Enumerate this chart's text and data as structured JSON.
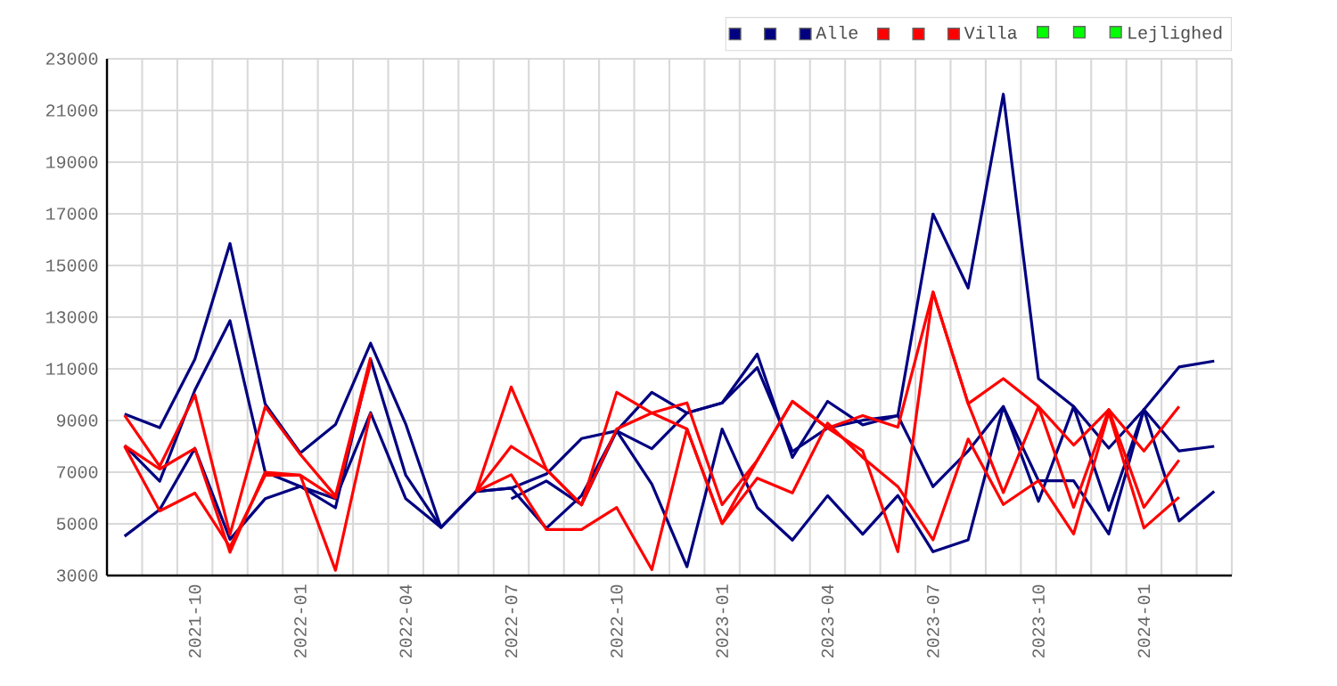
{
  "chart_data": {
    "type": "line",
    "x": [
      "2021-08",
      "2021-09",
      "2021-10",
      "2021-11",
      "2021-12",
      "2022-01",
      "2022-02",
      "2022-03",
      "2022-04",
      "2022-05",
      "2022-06",
      "2022-07",
      "2022-08",
      "2022-09",
      "2022-10",
      "2022-11",
      "2022-12",
      "2023-01",
      "2023-02",
      "2023-03",
      "2023-04",
      "2023-05",
      "2023-06",
      "2023-07",
      "2023-08",
      "2023-09",
      "2023-10",
      "2023-11",
      "2023-12",
      "2024-01",
      "2024-02",
      "2024-03"
    ],
    "series": [
      {
        "color": "#000080",
        "values": [
          9250,
          8720,
          11370,
          15850,
          9640,
          7740,
          8840,
          11990,
          8860,
          4860,
          6250,
          6380,
          6930,
          8300,
          8600,
          10090,
          9290,
          9680,
          11570,
          7570,
          9740,
          8830,
          9190,
          16990,
          14130,
          21630,
          10620,
          9540,
          7930,
          9420,
          11070,
          11300
        ]
      },
      {
        "color": "#000080",
        "values": [
          8030,
          6650,
          10170,
          12860,
          7000,
          6450,
          5620,
          11370,
          6880,
          4860,
          null,
          5970,
          6660,
          5740,
          8600,
          7910,
          9290,
          9680,
          11050,
          7800,
          8710,
          9010,
          9190,
          6440,
          7820,
          9540,
          6670,
          6670,
          4610,
          9420,
          7820,
          8000
        ]
      },
      {
        "name": "Alle",
        "color": "#000080",
        "values": [
          4520,
          5550,
          7920,
          4400,
          5970,
          6450,
          5970,
          9300,
          5970,
          4860,
          6250,
          6380,
          4830,
          6090,
          8600,
          6540,
          3340,
          8670,
          5630,
          4370,
          6090,
          4600,
          6100,
          3920,
          4380,
          9540,
          5870,
          9540,
          5520,
          9420,
          5110,
          6260
        ]
      },
      {
        "color": "#ff0000",
        "values": [
          9200,
          7230,
          9990,
          4590,
          9530,
          7690,
          6080,
          11440,
          null,
          null,
          6250,
          10300,
          7110,
          5740,
          10090,
          9290,
          9680,
          5740,
          7460,
          9740,
          8710,
          9190,
          8740,
          13970,
          9650,
          10620,
          9540,
          8050,
          9420,
          7820,
          9540,
          null
        ]
      },
      {
        "color": "#ff0000",
        "values": [
          8030,
          7120,
          7920,
          3900,
          7000,
          6880,
          6000,
          11200,
          null,
          null,
          6250,
          6900,
          4780,
          4780,
          5630,
          3230,
          8670,
          5010,
          6770,
          6200,
          8900,
          7570,
          6440,
          4380,
          8280,
          5750,
          6670,
          4610,
          9310,
          4840,
          6030,
          null
        ]
      },
      {
        "name": "Villa",
        "color": "#ff0000",
        "values": [
          8000,
          5500,
          6190,
          4100,
          6880,
          6880,
          3200,
          9300,
          null,
          null,
          6250,
          8000,
          7110,
          5740,
          8670,
          9290,
          8670,
          5010,
          7460,
          9740,
          8710,
          7820,
          3920,
          13970,
          9650,
          6210,
          9540,
          5640,
          9420,
          5640,
          7470,
          null
        ]
      },
      {
        "color": "#00ff00",
        "values": [
          null,
          null,
          null,
          null,
          null,
          null,
          null,
          null,
          null,
          null,
          null,
          null,
          null,
          null,
          null,
          null,
          null,
          null,
          null,
          null,
          null,
          null,
          null,
          null,
          null,
          null,
          null,
          null,
          null,
          null,
          null,
          null
        ]
      },
      {
        "color": "#00ff00",
        "values": [
          null,
          null,
          null,
          null,
          null,
          null,
          null,
          null,
          null,
          null,
          null,
          null,
          null,
          null,
          null,
          null,
          null,
          null,
          null,
          null,
          null,
          null,
          null,
          null,
          null,
          null,
          null,
          null,
          null,
          null,
          null,
          null
        ]
      },
      {
        "name": "Lejlighed",
        "color": "#00ff00",
        "values": [
          null,
          null,
          null,
          null,
          null,
          null,
          null,
          null,
          null,
          null,
          null,
          null,
          null,
          null,
          null,
          null,
          null,
          null,
          null,
          null,
          null,
          null,
          null,
          null,
          null,
          null,
          null,
          null,
          null,
          null,
          null,
          null
        ]
      }
    ],
    "xlim": [
      "2021-07-16",
      "2024-03-16"
    ],
    "xticks": [
      "2021-10",
      "2022-01",
      "2022-04",
      "2022-07",
      "2022-10",
      "2023-01",
      "2023-04",
      "2023-07",
      "2023-10",
      "2024-01"
    ],
    "ylim": [
      3000,
      23000
    ],
    "yticks": [
      3000,
      5000,
      7000,
      9000,
      11000,
      13000,
      15000,
      17000,
      19000,
      21000,
      23000
    ],
    "grid": true,
    "legend": "top right"
  }
}
